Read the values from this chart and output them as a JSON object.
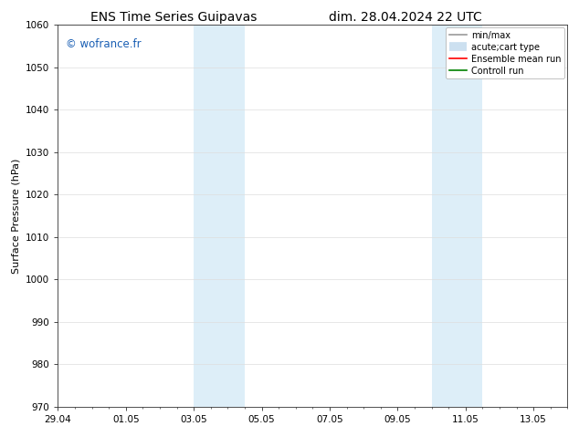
{
  "title_left": "ENS Time Series Guipavas",
  "title_right": "dim. 28.04.2024 22 UTC",
  "ylabel": "Surface Pressure (hPa)",
  "ylim": [
    970,
    1060
  ],
  "yticks": [
    970,
    980,
    990,
    1000,
    1010,
    1020,
    1030,
    1040,
    1050,
    1060
  ],
  "xlim": [
    0,
    15
  ],
  "xtick_labels": [
    "29.04",
    "01.05",
    "03.05",
    "05.05",
    "07.05",
    "09.05",
    "11.05",
    "13.05"
  ],
  "xtick_positions": [
    0,
    2,
    4,
    6,
    8,
    10,
    12,
    14
  ],
  "shaded_regions": [
    {
      "xstart": 4.0,
      "xend": 5.5
    },
    {
      "xstart": 11.0,
      "xend": 12.5
    }
  ],
  "shaded_color": "#ddeef8",
  "watermark": "© wofrance.fr",
  "watermark_color": "#1a5fb4",
  "legend_items": [
    {
      "label": "min/max",
      "color": "#999999",
      "lw": 1.2,
      "ls": "-",
      "type": "line"
    },
    {
      "label": "acute;cart type",
      "color": "#cce0f0",
      "lw": 7,
      "ls": "-",
      "type": "thick"
    },
    {
      "label": "Ensemble mean run",
      "color": "red",
      "lw": 1.2,
      "ls": "-",
      "type": "line"
    },
    {
      "label": "Controll run",
      "color": "green",
      "lw": 1.2,
      "ls": "-",
      "type": "line"
    }
  ],
  "bg_color": "#ffffff",
  "grid_color": "#dddddd",
  "title_fontsize": 10,
  "label_fontsize": 8,
  "tick_fontsize": 7.5,
  "legend_fontsize": 7
}
